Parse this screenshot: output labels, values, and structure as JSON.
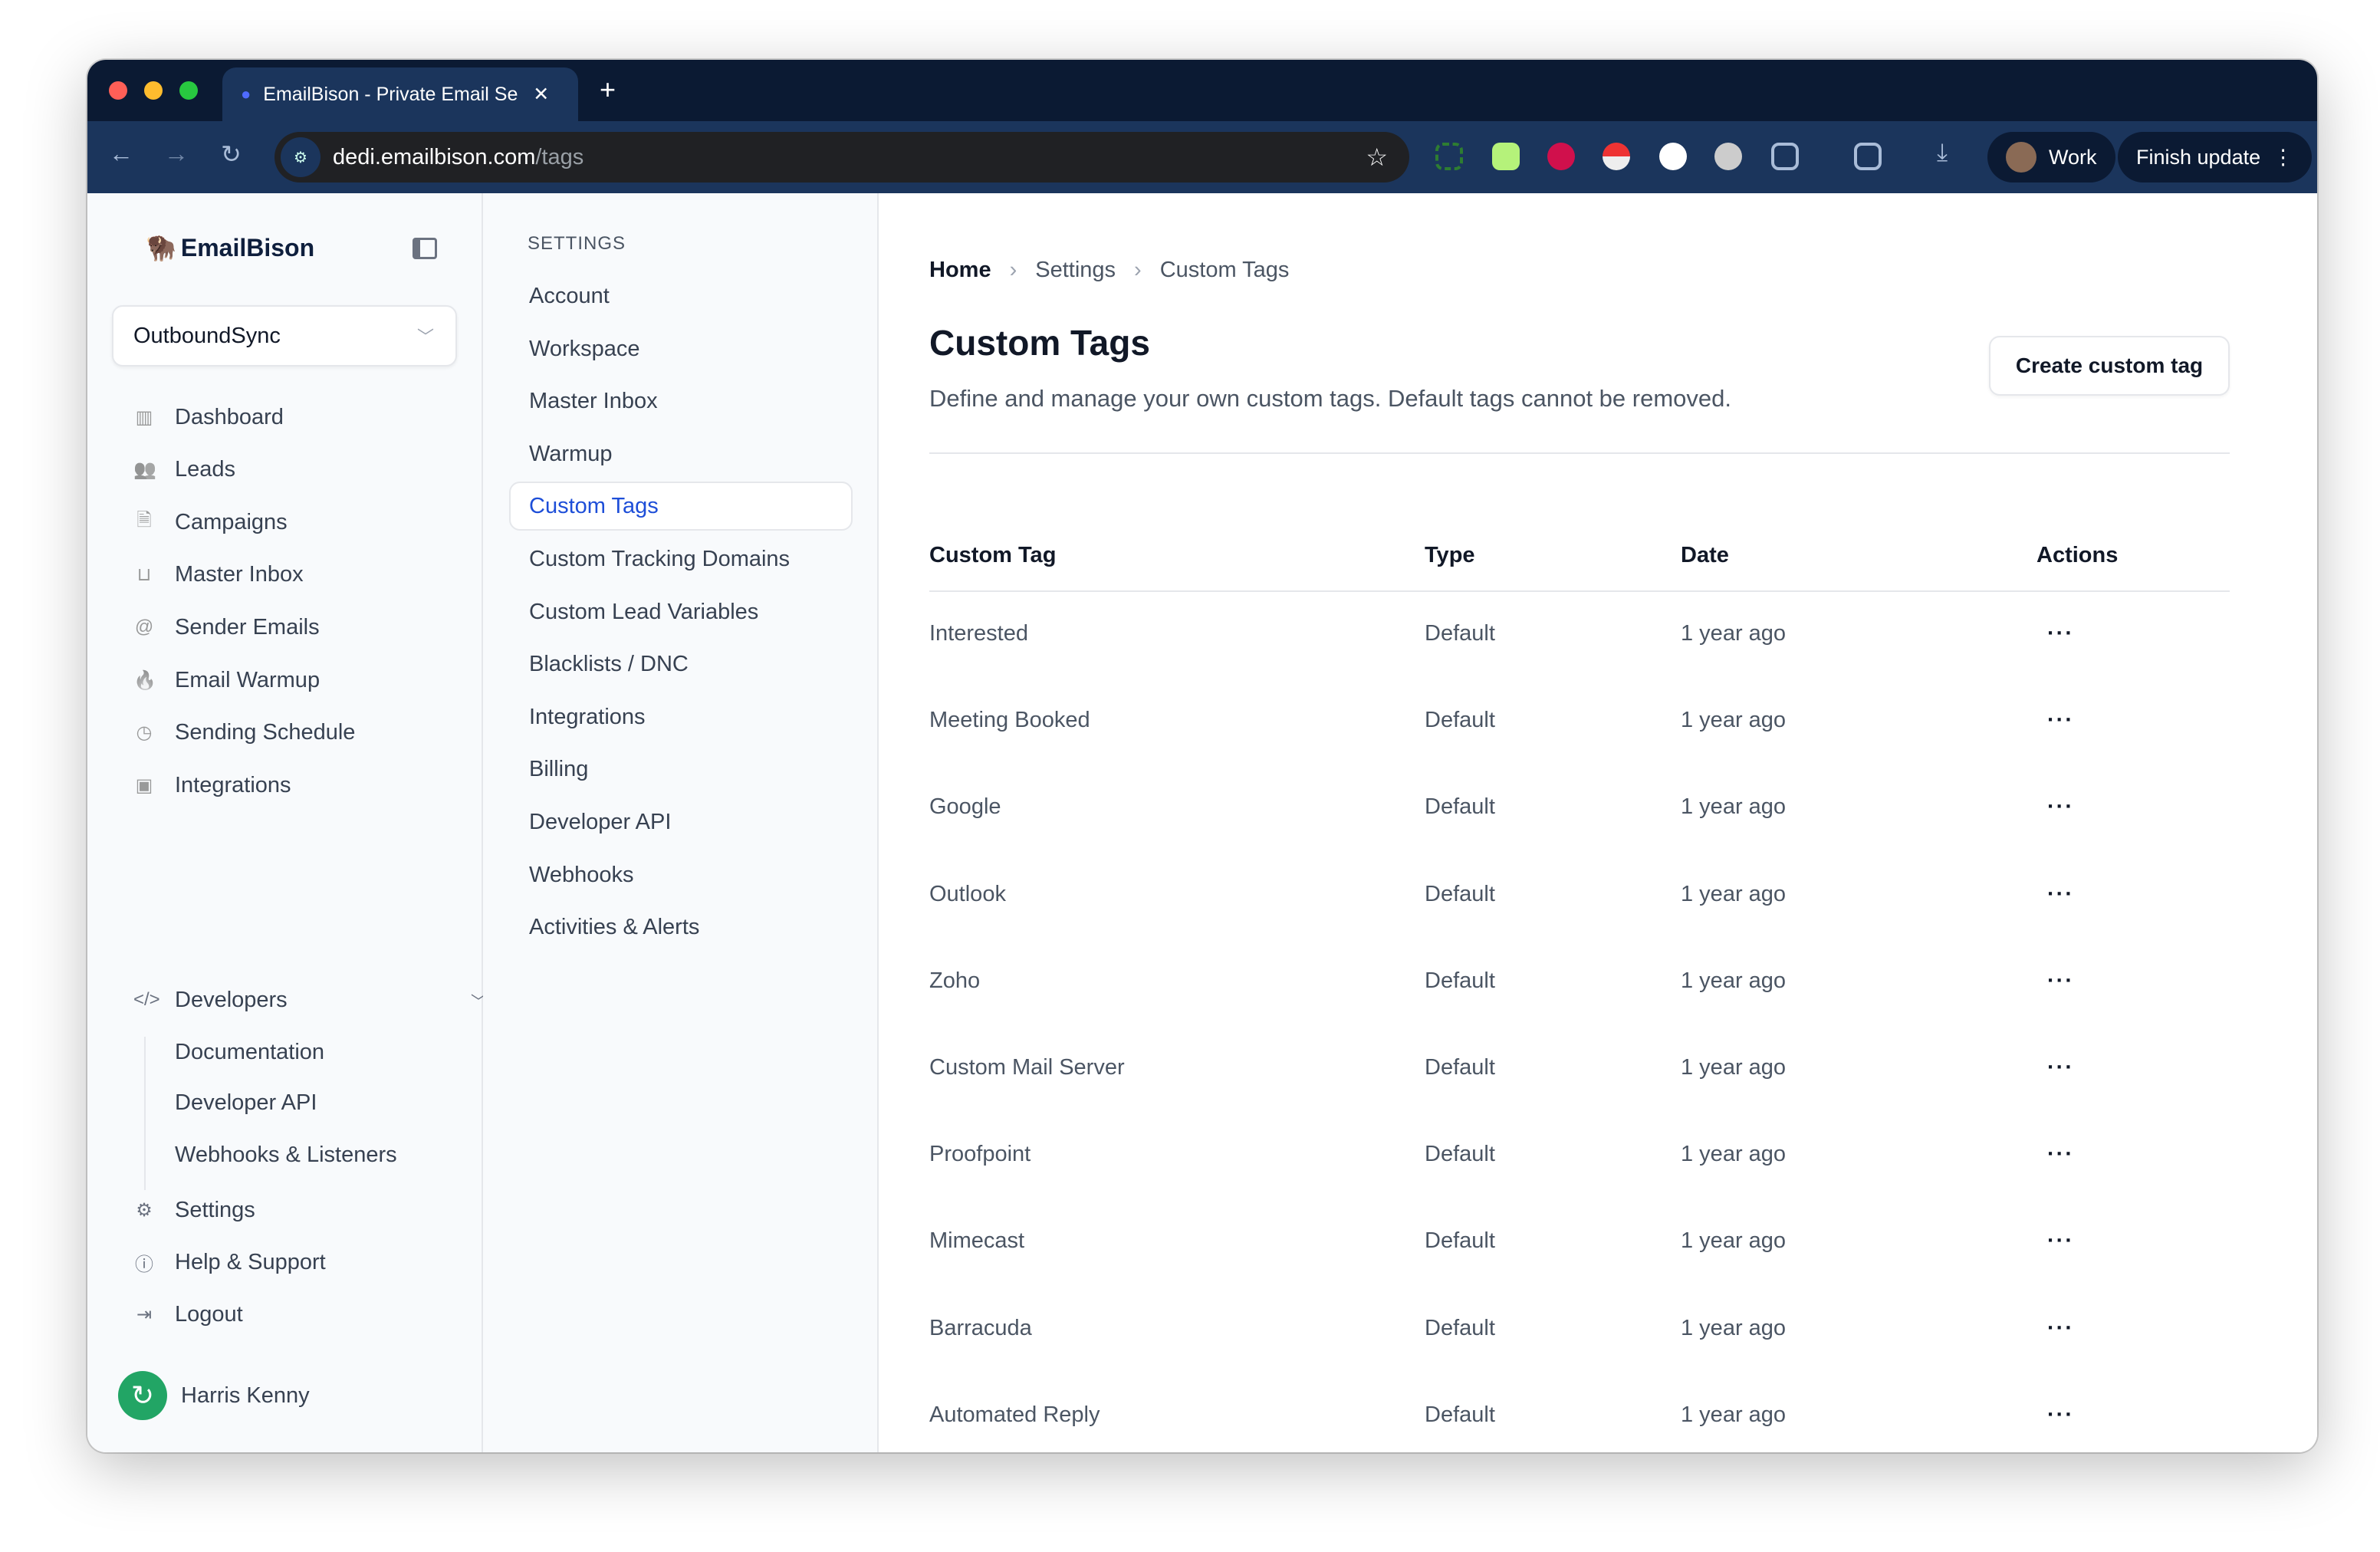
{
  "browser": {
    "tab_title": "EmailBison - Private Email Se",
    "url_host": "dedi.emailbison.com",
    "url_path": "/tags",
    "profile": "Work",
    "update_label": "Finish update"
  },
  "colors": {
    "accent": "#1d4ed8",
    "tabstrip": "#0b1a33",
    "toolbar": "#1b355c"
  },
  "sidebar": {
    "logo": "EmailBison",
    "workspace": "OutboundSync",
    "items": [
      {
        "label": "Dashboard",
        "icon": "bar-chart-icon"
      },
      {
        "label": "Leads",
        "icon": "users-icon"
      },
      {
        "label": "Campaigns",
        "icon": "file-icon"
      },
      {
        "label": "Master Inbox",
        "icon": "inbox-icon"
      },
      {
        "label": "Sender Emails",
        "icon": "at-icon"
      },
      {
        "label": "Email Warmup",
        "icon": "flame-icon"
      },
      {
        "label": "Sending Schedule",
        "icon": "clock-icon"
      },
      {
        "label": "Integrations",
        "icon": "chip-icon"
      }
    ],
    "developers": {
      "label": "Developers",
      "items": [
        "Documentation",
        "Developer API",
        "Webhooks & Listeners"
      ]
    },
    "bottom": [
      {
        "label": "Settings",
        "icon": "gear-icon"
      },
      {
        "label": "Help & Support",
        "icon": "info-icon"
      },
      {
        "label": "Logout",
        "icon": "logout-icon"
      }
    ],
    "user": "Harris Kenny"
  },
  "settings": {
    "heading": "SETTINGS",
    "items": [
      "Account",
      "Workspace",
      "Master Inbox",
      "Warmup",
      "Custom Tags",
      "Custom Tracking Domains",
      "Custom Lead Variables",
      "Blacklists / DNC",
      "Integrations",
      "Billing",
      "Developer API",
      "Webhooks",
      "Activities & Alerts"
    ],
    "active": "Custom Tags"
  },
  "main": {
    "breadcrumb": [
      "Home",
      "Settings",
      "Custom Tags"
    ],
    "title": "Custom Tags",
    "description": "Define and manage your own custom tags. Default tags cannot be removed.",
    "create_button": "Create custom tag",
    "columns": [
      "Custom Tag",
      "Type",
      "Date",
      "Actions"
    ],
    "rows": [
      [
        "Interested",
        "Default",
        "1 year ago"
      ],
      [
        "Meeting Booked",
        "Default",
        "1 year ago"
      ],
      [
        "Google",
        "Default",
        "1 year ago"
      ],
      [
        "Outlook",
        "Default",
        "1 year ago"
      ],
      [
        "Zoho",
        "Default",
        "1 year ago"
      ],
      [
        "Custom Mail Server",
        "Default",
        "1 year ago"
      ],
      [
        "Proofpoint",
        "Default",
        "1 year ago"
      ],
      [
        "Mimecast",
        "Default",
        "1 year ago"
      ],
      [
        "Barracuda",
        "Default",
        "1 year ago"
      ],
      [
        "Automated Reply",
        "Default",
        "1 year ago"
      ]
    ],
    "actions_glyph": "···"
  }
}
